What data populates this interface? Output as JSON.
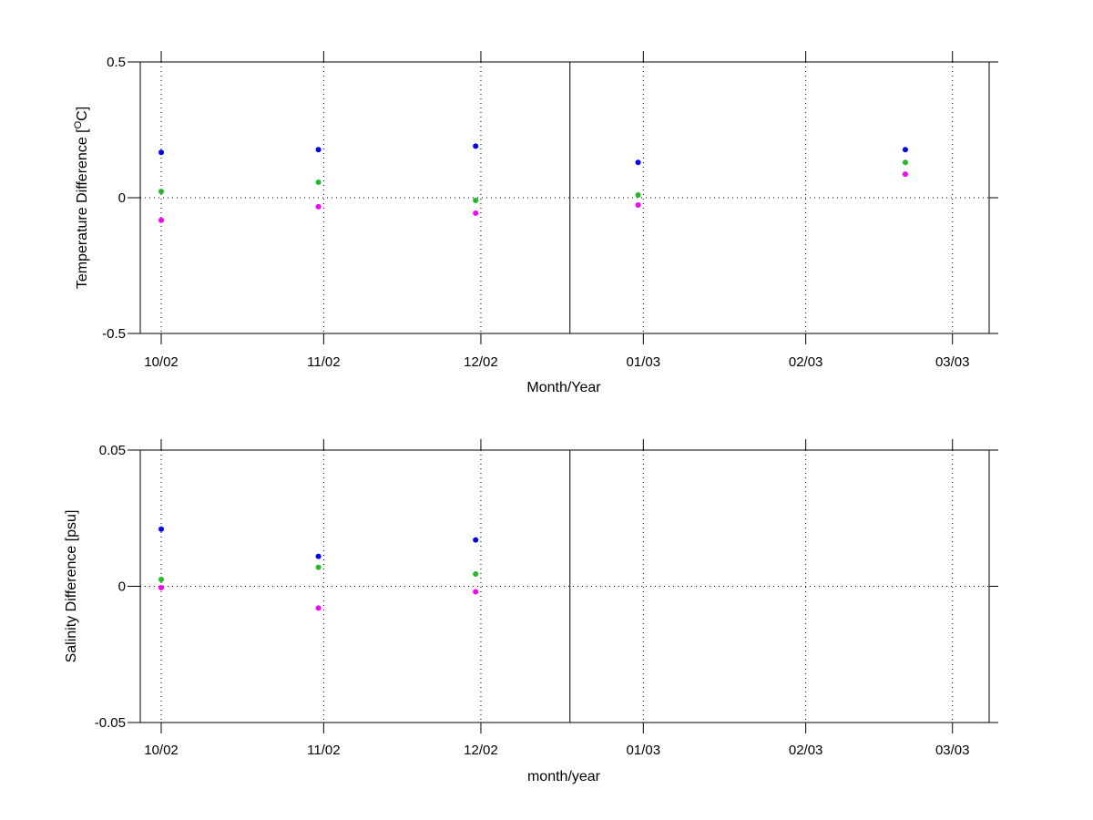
{
  "chart_data": [
    {
      "type": "scatter",
      "title": "",
      "xlabel": "Month/Year",
      "ylabel": "Temperature Difference [",
      "ylabel_sup": "O",
      "ylabel_tail": "C]",
      "xlim": [
        "2002-09-27",
        "2003-03-08"
      ],
      "ylim": [
        -0.5,
        0.5
      ],
      "yticks": [
        {
          "value": -0.5,
          "label": "-0.5"
        },
        {
          "value": 0,
          "label": "0"
        },
        {
          "value": 0.5,
          "label": "0.5"
        }
      ],
      "xticks": [
        {
          "date": "2002-10-01",
          "label": "10/02"
        },
        {
          "date": "2002-11-01",
          "label": "11/02"
        },
        {
          "date": "2002-12-01",
          "label": "12/02"
        },
        {
          "date": "2003-01-01",
          "label": "01/03"
        },
        {
          "date": "2003-02-01",
          "label": "02/03"
        },
        {
          "date": "2003-03-01",
          "label": "03/03"
        }
      ],
      "vline": "2002-12-18",
      "grid": "dotted at ticks and zero",
      "series": [
        {
          "color": "#0000ff",
          "points": [
            {
              "x": "2002-10-01",
              "y": 0.167
            },
            {
              "x": "2002-10-31",
              "y": 0.177
            },
            {
              "x": "2002-11-30",
              "y": 0.19
            },
            {
              "x": "2002-12-31",
              "y": 0.13
            },
            {
              "x": "2003-02-20",
              "y": 0.177
            }
          ]
        },
        {
          "color": "#22bb22",
          "points": [
            {
              "x": "2002-10-01",
              "y": 0.023
            },
            {
              "x": "2002-10-31",
              "y": 0.057
            },
            {
              "x": "2002-11-30",
              "y": -0.01
            },
            {
              "x": "2002-12-31",
              "y": 0.01
            },
            {
              "x": "2003-02-20",
              "y": 0.13
            }
          ]
        },
        {
          "color": "#ff00ff",
          "points": [
            {
              "x": "2002-10-01",
              "y": -0.083
            },
            {
              "x": "2002-10-31",
              "y": -0.033
            },
            {
              "x": "2002-11-30",
              "y": -0.057
            },
            {
              "x": "2002-12-31",
              "y": -0.027
            },
            {
              "x": "2003-02-20",
              "y": 0.087
            }
          ]
        }
      ]
    },
    {
      "type": "scatter",
      "title": "",
      "xlabel": "month/year",
      "ylabel": "Salinity Difference [psu]",
      "ylabel_sup": "",
      "ylabel_tail": "",
      "xlim": [
        "2002-09-27",
        "2003-03-08"
      ],
      "ylim": [
        -0.05,
        0.05
      ],
      "yticks": [
        {
          "value": -0.05,
          "label": "-0.05"
        },
        {
          "value": 0,
          "label": "0"
        },
        {
          "value": 0.05,
          "label": "0.05"
        }
      ],
      "xticks": [
        {
          "date": "2002-10-01",
          "label": "10/02"
        },
        {
          "date": "2002-11-01",
          "label": "11/02"
        },
        {
          "date": "2002-12-01",
          "label": "12/02"
        },
        {
          "date": "2003-01-01",
          "label": "01/03"
        },
        {
          "date": "2003-02-01",
          "label": "02/03"
        },
        {
          "date": "2003-03-01",
          "label": "03/03"
        }
      ],
      "vline": "2002-12-18",
      "grid": "dotted at ticks and zero",
      "series": [
        {
          "color": "#0000ff",
          "points": [
            {
              "x": "2002-10-01",
              "y": 0.021
            },
            {
              "x": "2002-10-31",
              "y": 0.011
            },
            {
              "x": "2002-11-30",
              "y": 0.017
            }
          ]
        },
        {
          "color": "#22bb22",
          "points": [
            {
              "x": "2002-10-01",
              "y": 0.0025
            },
            {
              "x": "2002-10-31",
              "y": 0.007
            },
            {
              "x": "2002-11-30",
              "y": 0.0045
            }
          ]
        },
        {
          "color": "#ff00ff",
          "points": [
            {
              "x": "2002-10-01",
              "y": -0.0005
            },
            {
              "x": "2002-10-31",
              "y": -0.008
            },
            {
              "x": "2002-11-30",
              "y": -0.002
            }
          ]
        }
      ]
    }
  ]
}
